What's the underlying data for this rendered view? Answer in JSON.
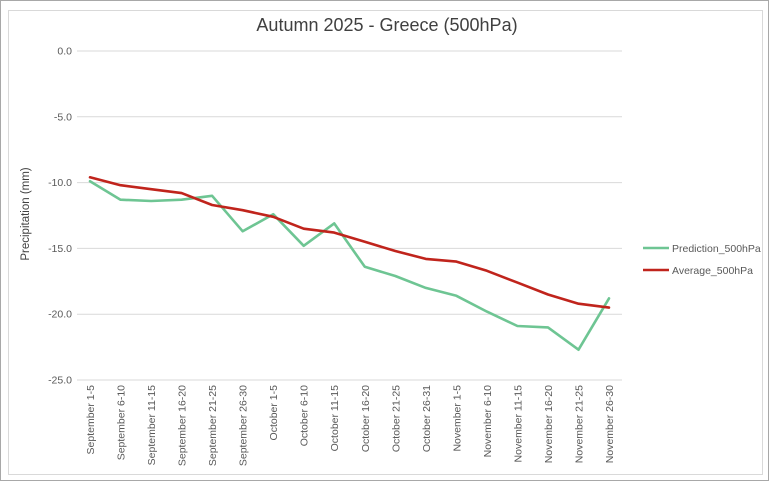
{
  "window": {
    "background": "#ffffff",
    "frame_border_color": "#d9d9d9"
  },
  "chart_data": {
    "type": "line",
    "title": "Autumn 2025 - Greece (500hPa)",
    "xlabel": "",
    "ylabel": "Precipitation (mm)",
    "ylim": [
      -25.0,
      0.0
    ],
    "ytick_step": 5,
    "ytick_labels": [
      "0.0",
      "-5.0",
      "-10.0",
      "-15.0",
      "-20.0",
      "-25.0"
    ],
    "grid": "horizontal",
    "gridline_color": "#d9d9d9",
    "legend_position": "right",
    "categories": [
      "September 1-5",
      "September 6-10",
      "September 11-15",
      "September 16-20",
      "September 21-25",
      "September 26-30",
      "October 1-5",
      "October 6-10",
      "October 11-15",
      "October 16-20",
      "October 21-25",
      "October 26-31",
      "November 1-5",
      "November 6-10",
      "November 11-15",
      "November 16-20",
      "November 21-25",
      "November 26-30"
    ],
    "series": [
      {
        "name": "Prediction_500hPa",
        "color": "#6ec593",
        "values": [
          -9.9,
          -11.3,
          -11.4,
          -11.3,
          -11.0,
          -13.7,
          -12.4,
          -14.8,
          -13.1,
          -16.4,
          -17.1,
          -18.0,
          -18.6,
          -19.8,
          -20.9,
          -21.0,
          -22.7,
          -18.8
        ]
      },
      {
        "name": "Average_500hPa",
        "color": "#c0241c",
        "values": [
          -9.6,
          -10.2,
          -10.5,
          -10.8,
          -11.7,
          -12.1,
          -12.6,
          -13.5,
          -13.8,
          -14.5,
          -15.2,
          -15.8,
          -16.0,
          -16.7,
          -17.6,
          -18.5,
          -19.2,
          -19.5
        ]
      }
    ]
  }
}
